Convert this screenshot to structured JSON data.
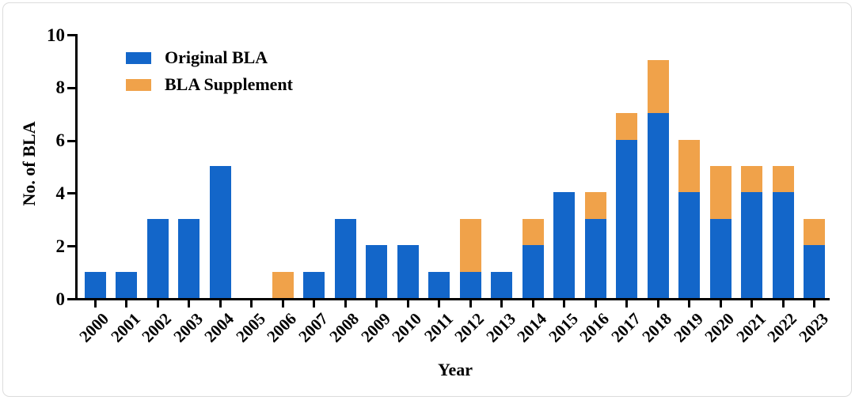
{
  "chart_data": {
    "type": "bar",
    "stacked": true,
    "title": "",
    "xlabel": "Year",
    "ylabel": "No. of BLA",
    "ylim": [
      0,
      10
    ],
    "yticks": [
      0,
      2,
      4,
      6,
      8,
      10
    ],
    "grid": false,
    "legend_position": "top-left-inside",
    "categories": [
      "2000",
      "2001",
      "2002",
      "2003",
      "2004",
      "2005",
      "2006",
      "2007",
      "2008",
      "2009",
      "2010",
      "2011",
      "2012",
      "2013",
      "2014",
      "2015",
      "2016",
      "2017",
      "2018",
      "2019",
      "2020",
      "2021",
      "2022",
      "2023"
    ],
    "series": [
      {
        "name": "Original BLA",
        "color": "#1366c9",
        "values": [
          1,
          1,
          3,
          3,
          5,
          0,
          0,
          1,
          3,
          2,
          2,
          1,
          1,
          1,
          2,
          4,
          3,
          6,
          7,
          4,
          3,
          4,
          4,
          2
        ]
      },
      {
        "name": "BLA Supplement",
        "color": "#f0a24a",
        "values": [
          0,
          0,
          0,
          0,
          0,
          0,
          1,
          0,
          0,
          0,
          0,
          0,
          2,
          0,
          1,
          0,
          1,
          1,
          2,
          2,
          2,
          1,
          1,
          1
        ]
      }
    ],
    "totals": [
      1,
      1,
      3,
      3,
      5,
      0,
      1,
      1,
      3,
      2,
      2,
      1,
      3,
      1,
      3,
      4,
      4,
      7,
      9,
      6,
      5,
      5,
      5,
      3
    ]
  },
  "legend": {
    "items": [
      {
        "label": "Original BLA",
        "color": "#1366c9"
      },
      {
        "label": "BLA Supplement",
        "color": "#f0a24a"
      }
    ]
  },
  "colors": {
    "axis": "#000000",
    "background": "#ffffff",
    "frame_border": "#dcdcdc"
  }
}
